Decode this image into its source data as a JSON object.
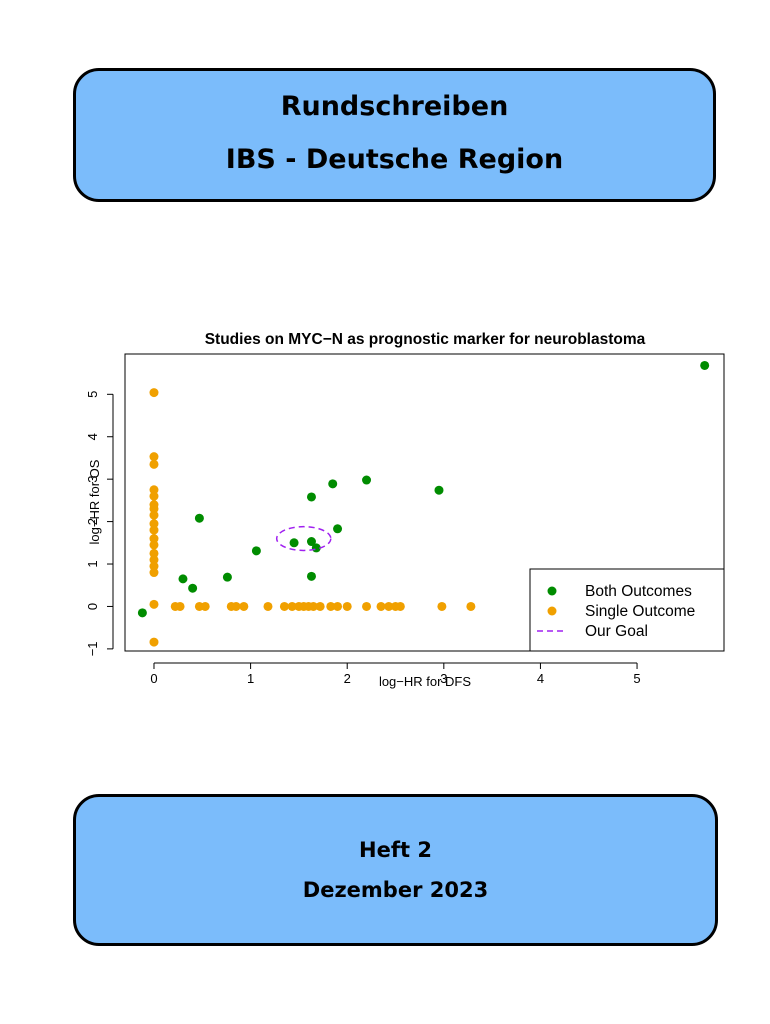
{
  "header": {
    "title_line1": "Rundschreiben",
    "title_line2": "IBS - Deutsche Region"
  },
  "footer": {
    "issue": "Heft 2",
    "date": "Dezember 2023"
  },
  "colors": {
    "banner": "#7bbcfb",
    "both": "#008c00",
    "single": "#f0a000",
    "goal": "#a020f0"
  },
  "chart_data": {
    "type": "scatter",
    "title": "Studies on MYC−N as prognostic marker for neuroblastoma",
    "xlabel": "log−HR for DFS",
    "ylabel": "log−HR for OS",
    "xlim": [
      -0.3,
      5.9
    ],
    "ylim": [
      -1.05,
      5.95
    ],
    "x_ticks": [
      0,
      1,
      2,
      3,
      4,
      5
    ],
    "y_ticks": [
      -1,
      0,
      1,
      2,
      3,
      4,
      5
    ],
    "x_tick_labels": [
      "0",
      "1",
      "2",
      "3",
      "4",
      "5"
    ],
    "y_tick_labels": [
      "−1",
      "0",
      "1",
      "2",
      "3",
      "4",
      "5"
    ],
    "legend": {
      "position": "bottom-right",
      "entries": [
        "Both Outcomes",
        "Single Outcome",
        "Our Goal"
      ]
    },
    "series": [
      {
        "name": "Both Outcomes",
        "marker": "dot",
        "points": [
          [
            -0.12,
            -0.15
          ],
          [
            0.3,
            0.65
          ],
          [
            0.4,
            0.43
          ],
          [
            0.47,
            2.08
          ],
          [
            0.76,
            0.69
          ],
          [
            1.06,
            1.31
          ],
          [
            1.45,
            1.5
          ],
          [
            1.63,
            2.58
          ],
          [
            1.63,
            1.53
          ],
          [
            1.63,
            0.71
          ],
          [
            1.68,
            1.38
          ],
          [
            1.85,
            2.89
          ],
          [
            1.9,
            1.83
          ],
          [
            2.2,
            2.98
          ],
          [
            2.95,
            2.74
          ],
          [
            5.7,
            5.68
          ]
        ]
      },
      {
        "name": "Single Outcome",
        "marker": "dot",
        "points": [
          [
            0,
            5.04
          ],
          [
            0,
            3.53
          ],
          [
            0,
            3.35
          ],
          [
            0,
            2.75
          ],
          [
            0,
            2.6
          ],
          [
            0,
            2.4
          ],
          [
            0,
            2.3
          ],
          [
            0,
            2.15
          ],
          [
            0,
            1.95
          ],
          [
            0,
            1.8
          ],
          [
            0,
            1.6
          ],
          [
            0,
            1.45
          ],
          [
            0,
            1.25
          ],
          [
            0,
            1.1
          ],
          [
            0,
            0.95
          ],
          [
            0,
            0.8
          ],
          [
            0,
            0.05
          ],
          [
            0,
            -0.84
          ],
          [
            0.22,
            0
          ],
          [
            0.27,
            0
          ],
          [
            0.47,
            0
          ],
          [
            0.53,
            0
          ],
          [
            0.8,
            0
          ],
          [
            0.85,
            0
          ],
          [
            0.93,
            0
          ],
          [
            1.18,
            0
          ],
          [
            1.35,
            0
          ],
          [
            1.43,
            0
          ],
          [
            1.5,
            0
          ],
          [
            1.55,
            0
          ],
          [
            1.6,
            0
          ],
          [
            1.65,
            0
          ],
          [
            1.72,
            0
          ],
          [
            1.83,
            0
          ],
          [
            1.9,
            0
          ],
          [
            2.0,
            0
          ],
          [
            2.2,
            0
          ],
          [
            2.35,
            0
          ],
          [
            2.43,
            0
          ],
          [
            2.5,
            0
          ],
          [
            2.55,
            0
          ],
          [
            2.98,
            0
          ],
          [
            3.28,
            0
          ]
        ]
      },
      {
        "name": "Our Goal",
        "marker": "ellipse",
        "center": [
          1.55,
          1.6
        ],
        "radii": [
          0.28,
          0.28
        ]
      }
    ]
  }
}
